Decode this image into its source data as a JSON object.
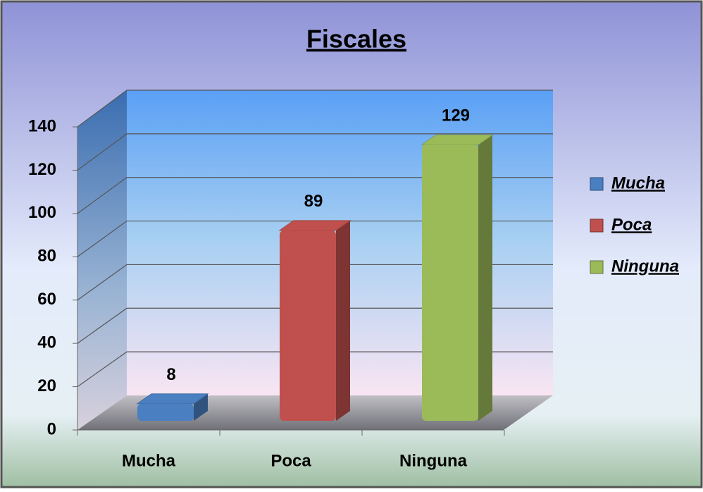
{
  "chart_data": {
    "type": "bar3d",
    "title": "Fiscales",
    "categories": [
      "Mucha",
      "Poca",
      "Ninguna"
    ],
    "values": [
      8,
      89,
      129
    ],
    "colors": [
      "#4a7fc1",
      "#c0504d",
      "#9bbb59"
    ],
    "ylim": [
      0,
      140
    ],
    "yticks": [
      0,
      20,
      40,
      60,
      80,
      100,
      120,
      140
    ],
    "grid": true,
    "legend": "right"
  }
}
